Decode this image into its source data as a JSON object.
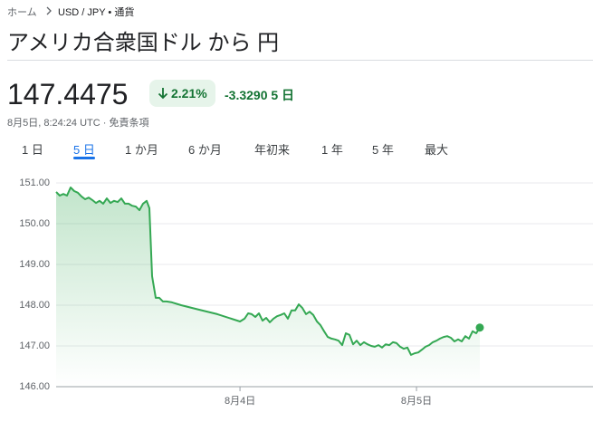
{
  "breadcrumb": [
    "ホーム",
    "USD / JPY • 通貨"
  ],
  "title": "アメリカ合衆国ドル から 円",
  "price": "147.4475",
  "change_percent": "2.21%",
  "change": "-3.3290",
  "change_period": "5 日",
  "timestamp": "8月5日, 8:24:24 UTC · 免責条項",
  "tabs": [
    "1 日",
    "5 日",
    "1 か月",
    "6 か月",
    "年初来",
    "1 年",
    "5 年",
    "最大"
  ],
  "selected_tab": 1,
  "chart_data": {
    "type": "line",
    "color": "#34a853",
    "grid": true,
    "xlim": [
      -25,
      48
    ],
    "xticks": [
      {
        "value": 0,
        "label": "8月4日"
      },
      {
        "value": 24,
        "label": "8月5日"
      }
    ],
    "ylim": [
      146,
      151
    ],
    "yticks": [
      {
        "value": 146,
        "label": "146.00"
      },
      {
        "value": 147,
        "label": "147.00"
      },
      {
        "value": 148,
        "label": "148.00"
      },
      {
        "value": 149,
        "label": "149.00"
      },
      {
        "value": 150,
        "label": "150.00"
      },
      {
        "value": 151,
        "label": "151.00"
      }
    ],
    "x": [
      -25,
      -24.51,
      -24.02,
      -23.52,
      -23.03,
      -22.54,
      -22.05,
      -21.55,
      -21.06,
      -20.57,
      -20.08,
      -19.58,
      -19.09,
      -18.6,
      -18.11,
      -17.61,
      -17.12,
      -16.63,
      -16.14,
      -15.64,
      -15.15,
      -14.66,
      -14.17,
      -13.67,
      -13.18,
      -12.69,
      -12.32,
      -11.95,
      -11.46,
      -10.97,
      -10.47,
      -9.98,
      -9.24,
      -8.01,
      -5.55,
      -3.09,
      0,
      0.62,
      1.11,
      1.59,
      2.08,
      2.58,
      3.07,
      3.56,
      4.05,
      4.55,
      5.04,
      5.53,
      6.02,
      6.52,
      7.01,
      7.5,
      7.99,
      8.49,
      8.98,
      9.47,
      9.96,
      10.46,
      10.95,
      11.44,
      11.93,
      12.43,
      12.92,
      13.41,
      13.9,
      14.39,
      14.89,
      15.38,
      15.87,
      16.36,
      16.86,
      17.35,
      17.84,
      18.33,
      18.83,
      19.32,
      19.81,
      20.3,
      20.8,
      21.29,
      21.78,
      22.27,
      22.77,
      23.26,
      23.75,
      24.24,
      24.74,
      25.23,
      25.72,
      26.21,
      26.71,
      27.2,
      27.69,
      28.18,
      28.67,
      29.17,
      29.66,
      30.15,
      30.64,
      31.14,
      31.63,
      32.12,
      32.61
    ],
    "series": [
      {
        "name": "USD / JPY",
        "color": "#34a853",
        "values": [
          150.78,
          150.69,
          150.73,
          150.69,
          150.89,
          150.8,
          150.76,
          150.67,
          150.6,
          150.64,
          150.58,
          150.51,
          150.56,
          150.49,
          150.62,
          150.51,
          150.56,
          150.53,
          150.62,
          150.49,
          150.49,
          150.44,
          150.42,
          150.33,
          150.49,
          150.56,
          150.38,
          148.71,
          148.18,
          148.18,
          148.09,
          148.09,
          148.07,
          148.0,
          147.89,
          147.78,
          147.6,
          147.67,
          147.8,
          147.78,
          147.71,
          147.8,
          147.62,
          147.69,
          147.58,
          147.67,
          147.73,
          147.76,
          147.8,
          147.67,
          147.87,
          147.87,
          148.02,
          147.93,
          147.78,
          147.84,
          147.76,
          147.6,
          147.51,
          147.36,
          147.22,
          147.18,
          147.16,
          147.13,
          147.02,
          147.31,
          147.27,
          147.04,
          147.13,
          147.02,
          147.09,
          147.04,
          147.0,
          146.98,
          147.02,
          146.96,
          147.04,
          147.02,
          147.09,
          147.07,
          146.98,
          146.93,
          146.96,
          146.78,
          146.82,
          146.84,
          146.91,
          146.98,
          147.02,
          147.09,
          147.13,
          147.18,
          147.22,
          147.24,
          147.2,
          147.11,
          147.16,
          147.11,
          147.24,
          147.18,
          147.36,
          147.31,
          147.45
        ]
      }
    ]
  }
}
